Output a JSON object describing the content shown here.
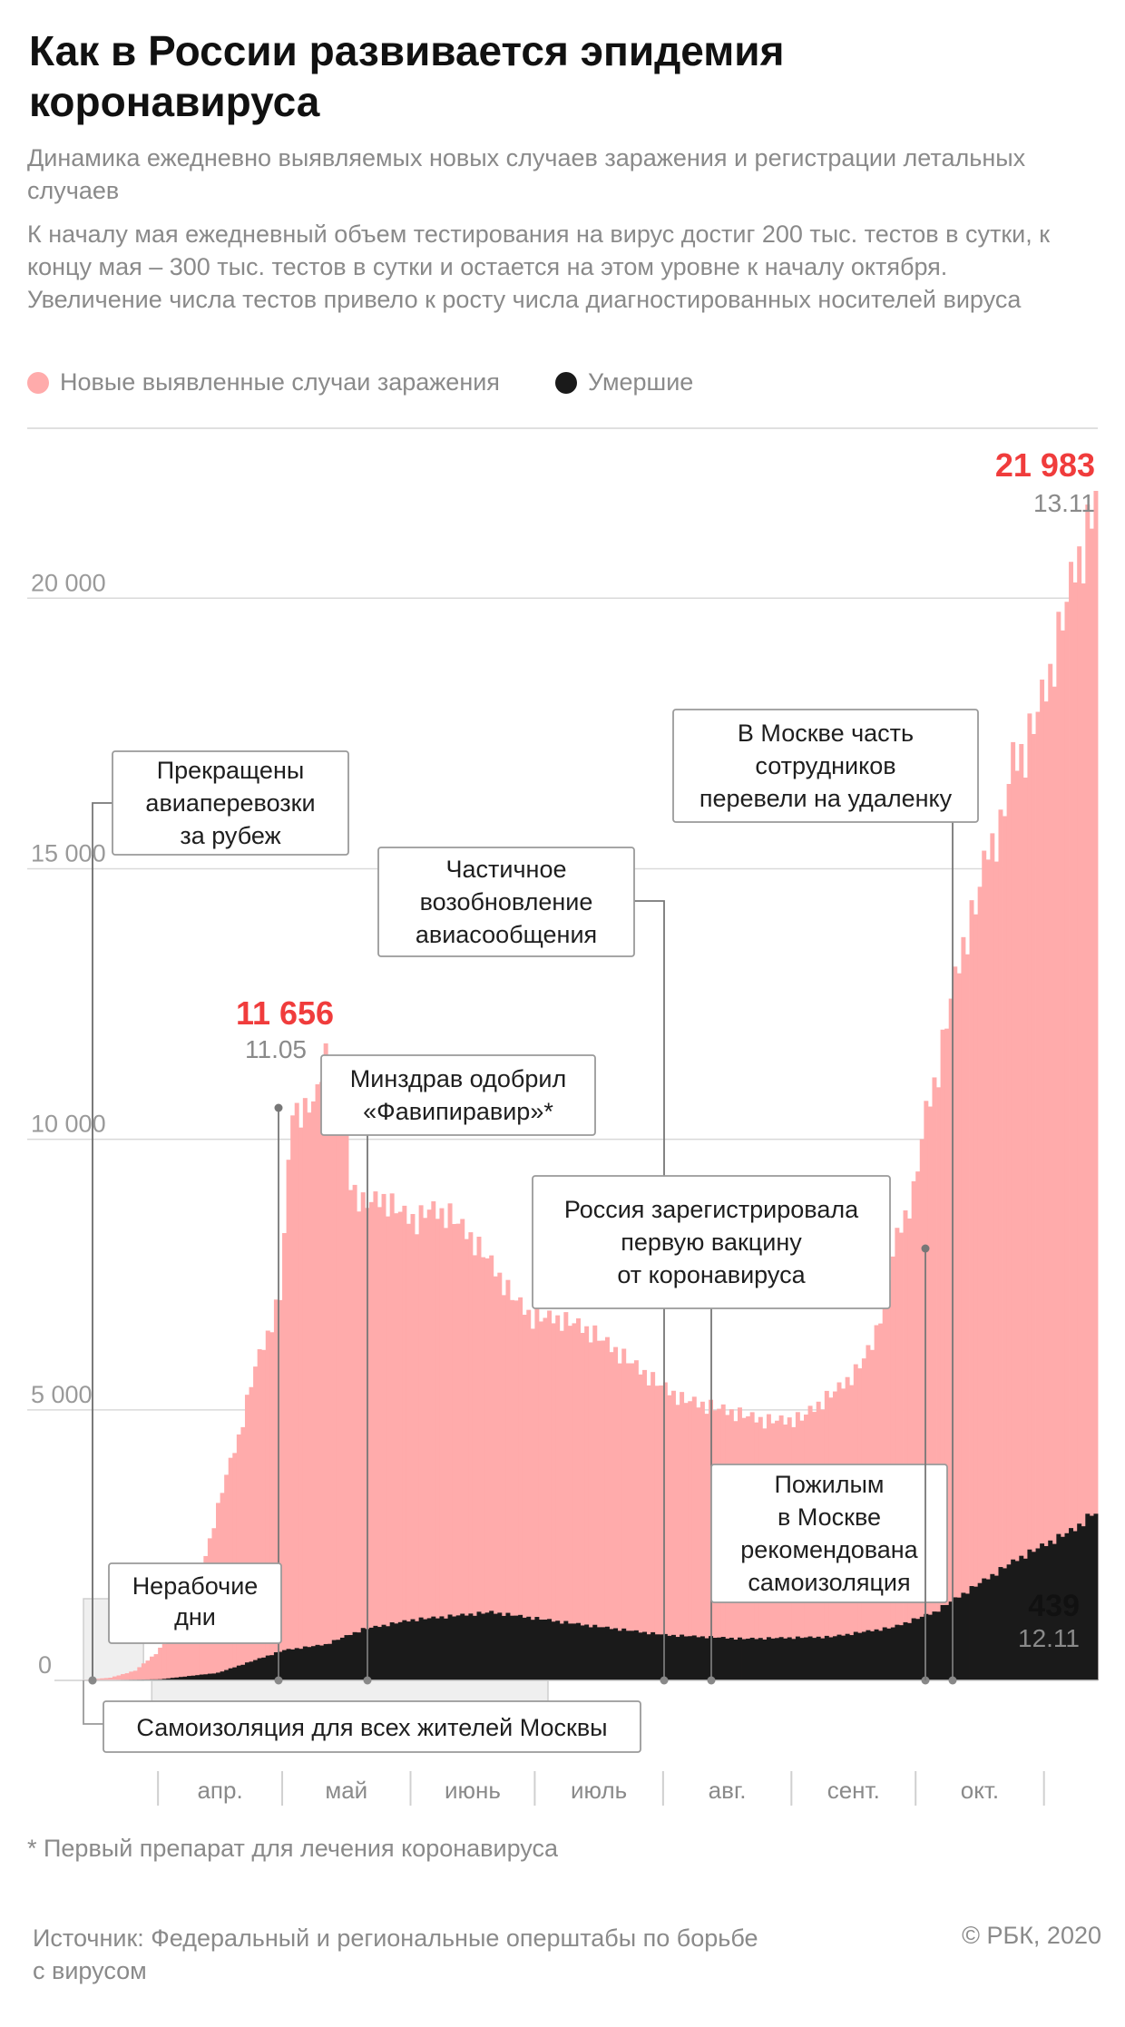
{
  "header": {
    "title": "Как в России развивается эпидемия коронавируса",
    "subtitle": "Динамика ежедневно выявляемых новых случаев заражения и регистрации летальных случаев",
    "description": "К началу мая ежедневный объем тестирования на вирус достиг 200 тыс. тестов в сутки, к концу мая – 300 тыс. тестов в сутки и остается на этом уровне к началу октября. Увеличение числа тестов привело к росту числа диагностированных носителей вируса"
  },
  "legend": {
    "cases": "Новые выявленные случаи заражения",
    "deaths": "Умершие"
  },
  "colors": {
    "cases": "#ffabab",
    "deaths": "#1a1a1a",
    "highlight": "#f03c3c",
    "muted": "#8a8a8a"
  },
  "chart_data": {
    "type": "bar",
    "start_date": "2020-03-14",
    "end_date": "2020-11-13",
    "y_ticks": [
      "0",
      "5 000",
      "10 000",
      "15 000",
      "20 000"
    ],
    "ylim": [
      0,
      22000
    ],
    "grid": true,
    "month_labels": [
      "апр.",
      "май",
      "июнь",
      "июль",
      "авг.",
      "сент.",
      "окт."
    ],
    "series": [
      {
        "name": "Новые выявленные случаи заражения",
        "anchors": [
          [
            "2020-03-14",
            10
          ],
          [
            "2020-03-20",
            50
          ],
          [
            "2020-03-26",
            180
          ],
          [
            "2020-03-31",
            500
          ],
          [
            "2020-04-05",
            950
          ],
          [
            "2020-04-10",
            1800
          ],
          [
            "2020-04-13",
            2600
          ],
          [
            "2020-04-17",
            3800
          ],
          [
            "2020-04-20",
            4500
          ],
          [
            "2020-04-24",
            5800
          ],
          [
            "2020-04-27",
            6400
          ],
          [
            "2020-04-30",
            7100
          ],
          [
            "2020-05-03",
            10600
          ],
          [
            "2020-05-06",
            10500
          ],
          [
            "2020-05-09",
            10800
          ],
          [
            "2020-05-11",
            11656
          ],
          [
            "2020-05-13",
            10900
          ],
          [
            "2020-05-15",
            10600
          ],
          [
            "2020-05-17",
            9200
          ],
          [
            "2020-05-20",
            8800
          ],
          [
            "2020-05-25",
            8900
          ],
          [
            "2020-05-30",
            8600
          ],
          [
            "2020-06-02",
            8500
          ],
          [
            "2020-06-05",
            8700
          ],
          [
            "2020-06-10",
            8600
          ],
          [
            "2020-06-15",
            8200
          ],
          [
            "2020-06-20",
            7700
          ],
          [
            "2020-06-25",
            7100
          ],
          [
            "2020-06-30",
            6700
          ],
          [
            "2020-07-05",
            6700
          ],
          [
            "2020-07-10",
            6600
          ],
          [
            "2020-07-15",
            6400
          ],
          [
            "2020-07-20",
            6100
          ],
          [
            "2020-07-25",
            5800
          ],
          [
            "2020-07-30",
            5500
          ],
          [
            "2020-08-05",
            5200
          ],
          [
            "2020-08-10",
            5100
          ],
          [
            "2020-08-15",
            5000
          ],
          [
            "2020-08-20",
            4900
          ],
          [
            "2020-08-25",
            4800
          ],
          [
            "2020-08-30",
            4800
          ],
          [
            "2020-09-03",
            4850
          ],
          [
            "2020-09-07",
            5100
          ],
          [
            "2020-09-12",
            5400
          ],
          [
            "2020-09-16",
            5700
          ],
          [
            "2020-09-20",
            6200
          ],
          [
            "2020-09-23",
            7100
          ],
          [
            "2020-09-26",
            8200
          ],
          [
            "2020-09-30",
            9000
          ],
          [
            "2020-10-03",
            10500
          ],
          [
            "2020-10-06",
            11300
          ],
          [
            "2020-10-09",
            12600
          ],
          [
            "2020-10-12",
            13600
          ],
          [
            "2020-10-15",
            14300
          ],
          [
            "2020-10-18",
            15400
          ],
          [
            "2020-10-21",
            15700
          ],
          [
            "2020-10-24",
            17000
          ],
          [
            "2020-10-27",
            17200
          ],
          [
            "2020-10-30",
            17900
          ],
          [
            "2020-11-02",
            18600
          ],
          [
            "2020-11-05",
            19600
          ],
          [
            "2020-11-08",
            20600
          ],
          [
            "2020-11-10",
            20900
          ],
          [
            "2020-11-12",
            21500
          ],
          [
            "2020-11-13",
            21983
          ]
        ]
      },
      {
        "name": "Умершие",
        "anchors": [
          [
            "2020-03-14",
            0
          ],
          [
            "2020-04-01",
            3
          ],
          [
            "2020-04-15",
            20
          ],
          [
            "2020-05-01",
            80
          ],
          [
            "2020-05-11",
            95
          ],
          [
            "2020-05-20",
            135
          ],
          [
            "2020-06-01",
            160
          ],
          [
            "2020-06-20",
            180
          ],
          [
            "2020-07-10",
            150
          ],
          [
            "2020-08-01",
            120
          ],
          [
            "2020-08-20",
            110
          ],
          [
            "2020-09-10",
            115
          ],
          [
            "2020-09-25",
            140
          ],
          [
            "2020-10-05",
            180
          ],
          [
            "2020-10-15",
            250
          ],
          [
            "2020-10-25",
            320
          ],
          [
            "2020-11-01",
            360
          ],
          [
            "2020-11-08",
            400
          ],
          [
            "2020-11-12",
            439
          ],
          [
            "2020-11-13",
            440
          ]
        ]
      }
    ],
    "highlights": [
      {
        "value": "21 983",
        "date": "13.11"
      },
      {
        "value": "11 656",
        "date": "11.05"
      },
      {
        "value": "439",
        "date": "12.11"
      }
    ],
    "annotations": [
      {
        "id": "flights",
        "text": [
          "Прекращены",
          "авиаперевозки",
          "за рубеж"
        ]
      },
      {
        "id": "partial",
        "text": [
          "Частичное",
          "возобновление",
          "авиасообщения"
        ]
      },
      {
        "id": "moscow-remote",
        "text": [
          "В Москве часть",
          "сотрудников",
          "перевели на удаленку"
        ]
      },
      {
        "id": "favipiravir",
        "text": [
          "Минздрав одобрил",
          "«Фавипиравир»*"
        ]
      },
      {
        "id": "vaccine",
        "text": [
          "Россия зарегистрировала",
          "первую вакцину",
          "от коронавируса"
        ]
      },
      {
        "id": "elderly",
        "text": [
          "Пожилым",
          "в Москве",
          "рекомендована",
          "самоизоляция"
        ]
      },
      {
        "id": "nonworking",
        "text": [
          "Нерабочие",
          "дни"
        ]
      },
      {
        "id": "selfiso",
        "text": [
          "Самоизоляция для всех жителей Москвы"
        ]
      }
    ]
  },
  "footnote": "* Первый препарат для лечения коронавируса",
  "source": "Источник: Федеральный и региональные оперштабы по борьбе с вирусом",
  "copyright": "© РБК, 2020"
}
